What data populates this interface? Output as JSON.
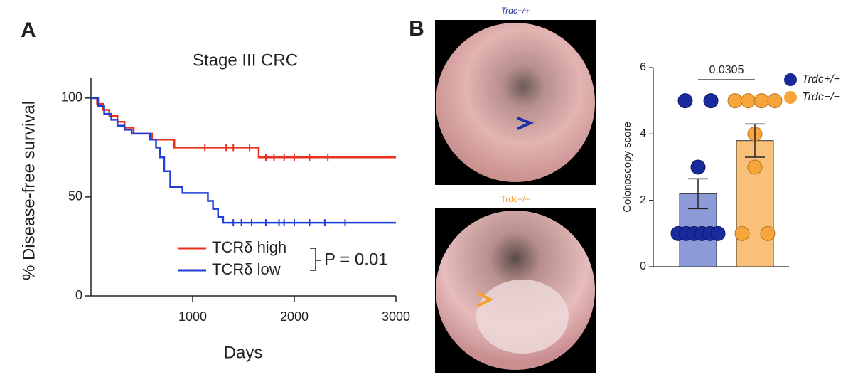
{
  "chart_data": [
    {
      "type": "line",
      "panel": "A",
      "title": "Stage III CRC",
      "x_label": "Days",
      "y_label": "% Disease-free survival",
      "xlim": [
        0,
        3000
      ],
      "xticks": [
        1000,
        2000,
        3000
      ],
      "ylim": [
        0,
        110
      ],
      "yticks": [
        0,
        50,
        100
      ],
      "step": true,
      "series": [
        {
          "name": "TCRδ high",
          "color": "#e8321e",
          "x": [
            0,
            60,
            120,
            180,
            260,
            330,
            420,
            600,
            820,
            1650,
            3000
          ],
          "values": [
            100,
            97,
            94,
            91,
            88,
            85,
            82,
            79,
            75,
            70,
            70
          ],
          "censored_x": [
            1120,
            1330,
            1400,
            1560,
            1720,
            1800,
            1900,
            2000,
            2150,
            2330
          ]
        },
        {
          "name": "TCRδ low",
          "color": "#1f3fd6",
          "x": [
            0,
            70,
            130,
            200,
            260,
            330,
            400,
            580,
            640,
            680,
            720,
            780,
            900,
            1150,
            1200,
            1250,
            1300,
            3000
          ],
          "values": [
            100,
            96,
            92,
            89,
            86,
            84,
            82,
            79,
            75,
            70,
            63,
            55,
            52,
            48,
            44,
            40,
            37,
            37
          ],
          "censored_x": [
            1400,
            1480,
            1580,
            1720,
            1850,
            1900,
            2000,
            2150,
            2300,
            2500
          ]
        }
      ],
      "annotation": "P = 0.01"
    },
    {
      "type": "bar",
      "panel": "B",
      "y_label": "Colonoscopy score",
      "ylim": [
        0,
        6
      ],
      "yticks": [
        0,
        2,
        4,
        6
      ],
      "series": [
        {
          "name": "Trdc+/+",
          "color": "#8c9bd8",
          "point_color": "#1a2a9a",
          "value": 2.2,
          "error": 0.45,
          "points": [
            5,
            5,
            3,
            1,
            1,
            1,
            1,
            1,
            1
          ]
        },
        {
          "name": "Trdc−/−",
          "color": "#f9c07a",
          "point_color": "#f7a53b",
          "value": 3.8,
          "error": 0.5,
          "points": [
            5,
            5,
            5,
            5,
            4,
            3,
            1,
            1
          ]
        }
      ],
      "annotation": "0.0305"
    }
  ],
  "images": [
    {
      "label": "Trdc+/+"
    },
    {
      "label": "Trdc−/−"
    }
  ]
}
